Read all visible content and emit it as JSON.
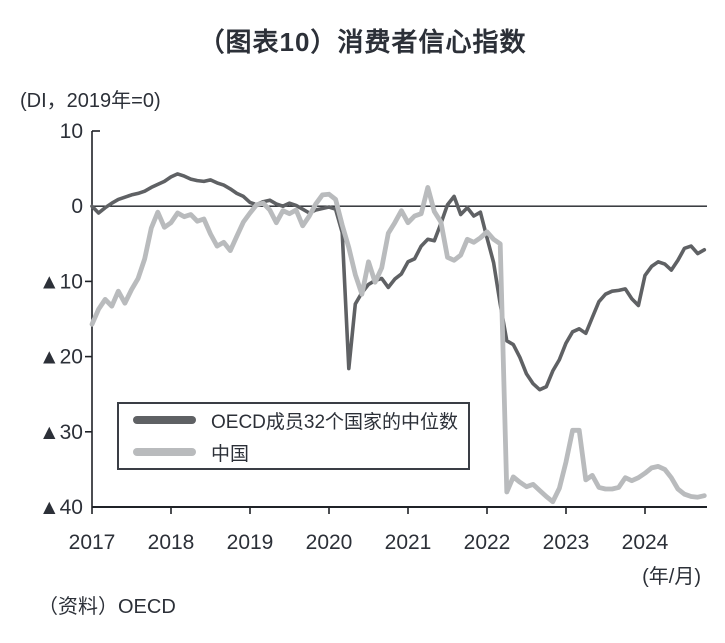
{
  "page": {
    "title": "（图表10）消费者信心指数",
    "unit_label": "(DI，2019年=0)",
    "x_axis_unit_label": "(年/月)",
    "source": "（资料）OECD"
  },
  "legend": {
    "items": [
      {
        "label": "OECD成员32个国家的中位数",
        "color": "#5f6164"
      },
      {
        "label": "中国",
        "color": "#b9bbbd"
      }
    ]
  },
  "colors": {
    "text": "#2c3038",
    "axis": "#1f2227",
    "oecd_line": "#5f6164",
    "china_line": "#b9bbbd",
    "background": "#ffffff"
  },
  "chart_data": {
    "type": "line",
    "title": "消费者信心指数",
    "ylabel": "(DI，2019年=0)",
    "xlabel": "(年/月)",
    "x_start": "2017-01",
    "x_frequency": "monthly",
    "x_tick_labels": [
      "2017",
      "2018",
      "2019",
      "2020",
      "2021",
      "2022",
      "2023",
      "2024"
    ],
    "y_ticks": [
      {
        "value": 10,
        "label": "10"
      },
      {
        "value": 0,
        "label": "0"
      },
      {
        "value": -10,
        "label": "▲10"
      },
      {
        "value": -20,
        "label": "▲20"
      },
      {
        "value": -30,
        "label": "▲30"
      },
      {
        "value": -40,
        "label": "▲40"
      }
    ],
    "ylim": [
      -40,
      10
    ],
    "zero_line": true,
    "grid": false,
    "legend_position": "inside-bottom-left",
    "series": [
      {
        "name": "OECD成员32个国家的中位数",
        "color": "#5f6164",
        "stroke_width": 3.6,
        "values": [
          0.0,
          -0.9,
          -0.2,
          0.4,
          0.9,
          1.2,
          1.5,
          1.7,
          2.0,
          2.5,
          2.9,
          3.3,
          3.9,
          4.3,
          4.0,
          3.6,
          3.4,
          3.3,
          3.5,
          3.1,
          2.8,
          2.3,
          1.7,
          1.3,
          0.5,
          0.2,
          0.6,
          0.8,
          0.3,
          0.0,
          0.4,
          0.1,
          -0.4,
          -0.9,
          -0.5,
          -0.3,
          -0.1,
          -0.4,
          -3.5,
          -21.6,
          -13.0,
          -11.5,
          -10.4,
          -9.9,
          -9.6,
          -10.8,
          -9.7,
          -9.0,
          -7.4,
          -7.0,
          -5.3,
          -4.4,
          -4.6,
          -2.3,
          0.2,
          1.3,
          -1.1,
          -0.2,
          -1.3,
          -0.8,
          -4.2,
          -7.5,
          -13.0,
          -17.9,
          -18.4,
          -20.1,
          -22.3,
          -23.6,
          -24.4,
          -24.0,
          -21.9,
          -20.4,
          -18.2,
          -16.7,
          -16.3,
          -16.9,
          -14.8,
          -12.7,
          -11.7,
          -11.3,
          -11.2,
          -11.0,
          -12.3,
          -13.2,
          -9.2,
          -8.0,
          -7.4,
          -7.7,
          -8.5,
          -7.2,
          -5.6,
          -5.3,
          -6.3,
          -5.8
        ]
      },
      {
        "name": "中国",
        "color": "#b9bbbd",
        "stroke_width": 4.8,
        "values": [
          -15.7,
          -13.7,
          -12.4,
          -13.3,
          -11.3,
          -12.9,
          -11.1,
          -9.6,
          -7.0,
          -2.9,
          -0.8,
          -2.8,
          -2.2,
          -0.9,
          -1.4,
          -1.1,
          -2.0,
          -1.7,
          -3.7,
          -5.3,
          -4.8,
          -5.9,
          -4.0,
          -2.1,
          -0.9,
          0.2,
          0.4,
          -0.5,
          -2.2,
          -0.6,
          -1.0,
          -0.5,
          -2.6,
          -1.3,
          0.3,
          1.5,
          1.6,
          0.9,
          -2.5,
          -5.5,
          -9.1,
          -11.7,
          -7.4,
          -10.1,
          -8.2,
          -3.6,
          -2.2,
          -0.6,
          -2.2,
          -1.3,
          -1.0,
          2.5,
          -0.7,
          -2.1,
          -6.8,
          -7.2,
          -6.5,
          -4.4,
          -4.8,
          -4.2,
          -3.4,
          -4.4,
          -5.0,
          -38.0,
          -36.0,
          -36.7,
          -37.3,
          -37.0,
          -37.8,
          -38.6,
          -39.3,
          -37.5,
          -34.0,
          -29.8,
          -29.8,
          -36.4,
          -35.8,
          -37.4,
          -37.6,
          -37.6,
          -37.4,
          -36.1,
          -36.5,
          -36.1,
          -35.5,
          -34.8,
          -34.6,
          -35.0,
          -36.1,
          -37.6,
          -38.3,
          -38.6,
          -38.7,
          -38.5
        ]
      }
    ]
  }
}
